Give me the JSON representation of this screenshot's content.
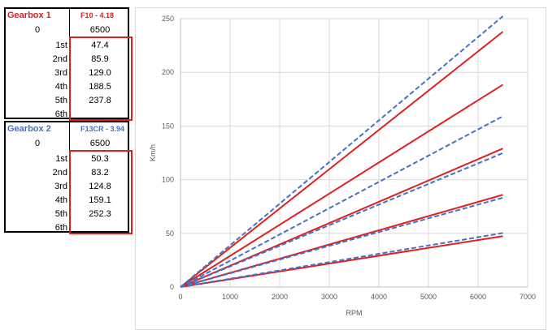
{
  "gearbox1": {
    "name": "Gearbox 1",
    "model": "F10 - 4.18",
    "rpm_start": "0",
    "rpm_end": "6500",
    "gears": [
      {
        "gear": "1st",
        "speed": "47.4"
      },
      {
        "gear": "2nd",
        "speed": "85.9"
      },
      {
        "gear": "3rd",
        "speed": "129.0"
      },
      {
        "gear": "4th",
        "speed": "188.5"
      },
      {
        "gear": "5th",
        "speed": "237.8"
      },
      {
        "gear": "6th",
        "speed": ""
      }
    ],
    "color": "#e02020"
  },
  "gearbox2": {
    "name": "Gearbox 2",
    "model": "F13CR - 3.94",
    "rpm_start": "0",
    "rpm_end": "6500",
    "gears": [
      {
        "gear": "1st",
        "speed": "50.3"
      },
      {
        "gear": "2nd",
        "speed": "83.2"
      },
      {
        "gear": "3rd",
        "speed": "124.8"
      },
      {
        "gear": "4th",
        "speed": "159.1"
      },
      {
        "gear": "5th",
        "speed": "252.3"
      },
      {
        "gear": "6th",
        "speed": ""
      }
    ],
    "color": "#4472c4"
  },
  "chart_data": {
    "type": "line",
    "xlabel": "RPM",
    "ylabel": "Km/h",
    "xlim": [
      0,
      7000
    ],
    "ylim": [
      0,
      250
    ],
    "xticks": [
      0,
      1000,
      2000,
      3000,
      4000,
      5000,
      6000,
      7000
    ],
    "yticks": [
      0,
      50,
      100,
      150,
      200,
      250
    ],
    "grid": true,
    "series": [
      {
        "group": "gearbox1",
        "style": "solid",
        "color": "#e02020",
        "x": [
          0,
          6500
        ],
        "y": [
          0,
          47.4
        ]
      },
      {
        "group": "gearbox1",
        "style": "solid",
        "color": "#e02020",
        "x": [
          0,
          6500
        ],
        "y": [
          0,
          85.9
        ]
      },
      {
        "group": "gearbox1",
        "style": "solid",
        "color": "#e02020",
        "x": [
          0,
          6500
        ],
        "y": [
          0,
          129.0
        ]
      },
      {
        "group": "gearbox1",
        "style": "solid",
        "color": "#e02020",
        "x": [
          0,
          6500
        ],
        "y": [
          0,
          188.5
        ]
      },
      {
        "group": "gearbox1",
        "style": "solid",
        "color": "#e02020",
        "x": [
          0,
          6500
        ],
        "y": [
          0,
          237.8
        ]
      },
      {
        "group": "gearbox2",
        "style": "dashed",
        "color": "#4472c4",
        "x": [
          0,
          6500
        ],
        "y": [
          0,
          50.3
        ]
      },
      {
        "group": "gearbox2",
        "style": "dashed",
        "color": "#4472c4",
        "x": [
          0,
          6500
        ],
        "y": [
          0,
          83.2
        ]
      },
      {
        "group": "gearbox2",
        "style": "dashed",
        "color": "#4472c4",
        "x": [
          0,
          6500
        ],
        "y": [
          0,
          124.8
        ]
      },
      {
        "group": "gearbox2",
        "style": "dashed",
        "color": "#4472c4",
        "x": [
          0,
          6500
        ],
        "y": [
          0,
          159.1
        ]
      },
      {
        "group": "gearbox2",
        "style": "dashed",
        "color": "#4472c4",
        "x": [
          0,
          6500
        ],
        "y": [
          0,
          252.3
        ]
      }
    ]
  }
}
